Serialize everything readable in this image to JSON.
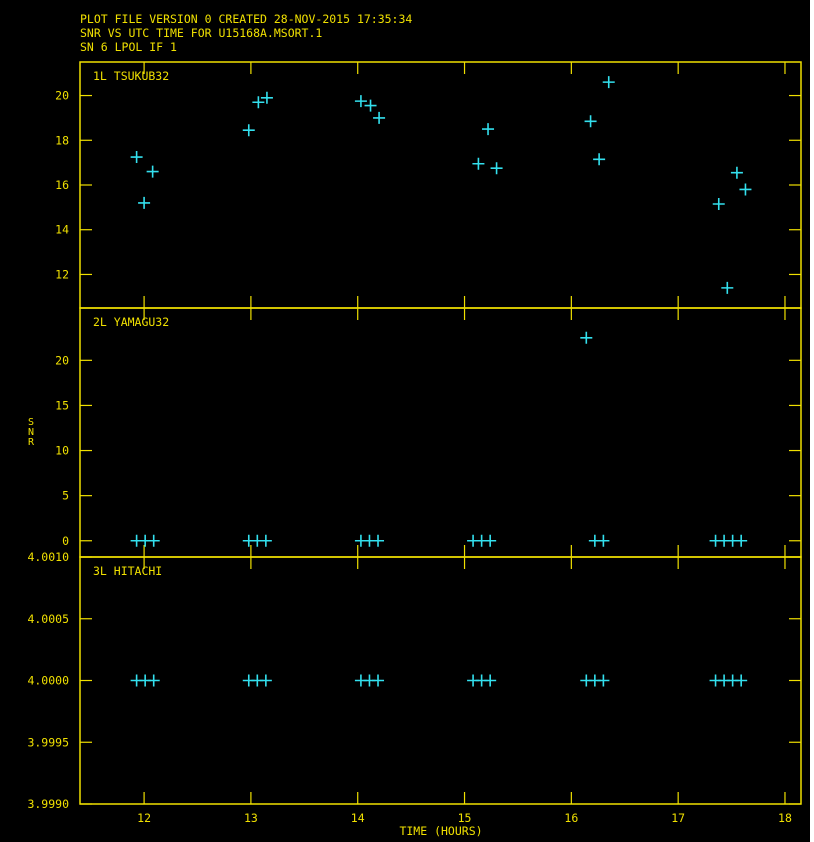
{
  "header": {
    "line1": "PLOT FILE VERSION 0  CREATED 28-NOV-2015 17:35:34",
    "line2": "SNR VS UTC TIME FOR U15168A.MSORT.1",
    "line3": "SN 6  LPOL  IF 1"
  },
  "colors": {
    "background": "#000000",
    "axes_text": "#f0e000",
    "points": "#33e0ee"
  },
  "chart_data": {
    "type": "scatter",
    "marker": "plus",
    "xlabel": "TIME (HOURS)",
    "ylabel": "SNR",
    "xlim": [
      11.4,
      18.15
    ],
    "x_ticks": [
      12,
      13,
      14,
      15,
      16,
      17,
      18
    ],
    "panels": [
      {
        "label": "1L TSUKUB32",
        "ylim": [
          10.5,
          21.5
        ],
        "y_ticks": [
          12,
          14,
          16,
          18,
          20
        ],
        "y_tick_labels": [
          "12",
          "14",
          "16",
          "18",
          "20"
        ],
        "points": [
          [
            11.93,
            17.25
          ],
          [
            12.0,
            15.2
          ],
          [
            12.08,
            16.6
          ],
          [
            12.98,
            18.45
          ],
          [
            13.07,
            19.7
          ],
          [
            13.15,
            19.9
          ],
          [
            14.03,
            19.75
          ],
          [
            14.12,
            19.55
          ],
          [
            14.2,
            19.0
          ],
          [
            15.13,
            16.95
          ],
          [
            15.22,
            18.5
          ],
          [
            15.3,
            16.75
          ],
          [
            16.18,
            18.85
          ],
          [
            16.26,
            17.15
          ],
          [
            16.35,
            20.6
          ],
          [
            17.38,
            15.15
          ],
          [
            17.46,
            11.4
          ],
          [
            17.55,
            16.55
          ],
          [
            17.63,
            15.8
          ]
        ]
      },
      {
        "label": "2L YAMAGU32",
        "ylim": [
          -1.8,
          25.8
        ],
        "y_ticks": [
          0,
          5,
          10,
          15,
          20
        ],
        "y_tick_labels": [
          "0",
          "5",
          "10",
          "15",
          "20"
        ],
        "points": [
          [
            11.93,
            0
          ],
          [
            12.01,
            0
          ],
          [
            12.09,
            0
          ],
          [
            12.98,
            0
          ],
          [
            13.06,
            0
          ],
          [
            13.14,
            0
          ],
          [
            14.03,
            0
          ],
          [
            14.11,
            0
          ],
          [
            14.19,
            0
          ],
          [
            15.08,
            0
          ],
          [
            15.16,
            0
          ],
          [
            15.24,
            0
          ],
          [
            16.14,
            22.5
          ],
          [
            16.22,
            0
          ],
          [
            16.3,
            0
          ],
          [
            17.35,
            0
          ],
          [
            17.43,
            0
          ],
          [
            17.51,
            0
          ],
          [
            17.59,
            0
          ]
        ]
      },
      {
        "label": "3L HITACHI",
        "ylim": [
          3.999,
          4.001
        ],
        "y_ticks": [
          3.999,
          3.9995,
          4.0,
          4.0005,
          4.001
        ],
        "y_tick_labels": [
          "3.9990",
          "3.9995",
          "4.0000",
          "4.0005",
          "4.0010"
        ],
        "points": [
          [
            11.93,
            4.0
          ],
          [
            12.01,
            4.0
          ],
          [
            12.09,
            4.0
          ],
          [
            12.98,
            4.0
          ],
          [
            13.06,
            4.0
          ],
          [
            13.14,
            4.0
          ],
          [
            14.03,
            4.0
          ],
          [
            14.11,
            4.0
          ],
          [
            14.19,
            4.0
          ],
          [
            15.08,
            4.0
          ],
          [
            15.16,
            4.0
          ],
          [
            15.24,
            4.0
          ],
          [
            16.14,
            4.0
          ],
          [
            16.22,
            4.0
          ],
          [
            16.3,
            4.0
          ],
          [
            17.35,
            4.0
          ],
          [
            17.43,
            4.0
          ],
          [
            17.51,
            4.0
          ],
          [
            17.59,
            4.0
          ]
        ]
      }
    ]
  }
}
